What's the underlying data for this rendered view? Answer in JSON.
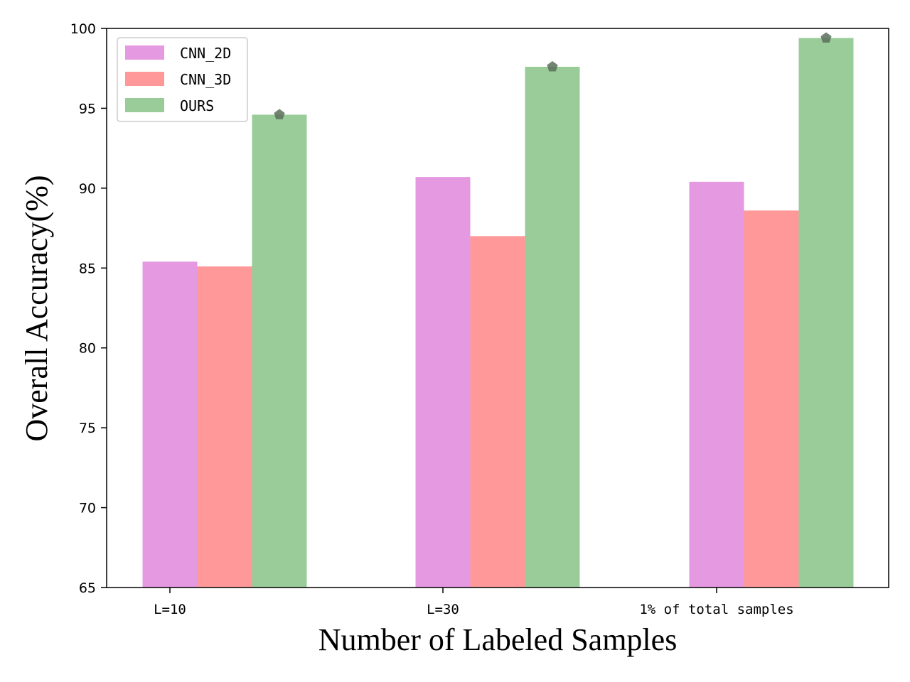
{
  "chart_data": {
    "type": "bar",
    "title": "",
    "xlabel": "Number of Labeled Samples",
    "ylabel": "Overall Accuracy(%)",
    "categories": [
      "L=10",
      "L=30",
      "1% of total samples"
    ],
    "ylim": [
      65,
      100
    ],
    "yticks": [
      "65",
      "70",
      "75",
      "80",
      "85",
      "90",
      "95",
      "100"
    ],
    "grid": false,
    "legend_position": "top-left",
    "series": [
      {
        "name": "CNN_2D",
        "color": "#e599e1",
        "values": [
          85.4,
          90.7,
          90.4
        ]
      },
      {
        "name": "CNN_3D",
        "color": "#ff9999",
        "values": [
          85.1,
          87.0,
          88.6
        ]
      },
      {
        "name": "OURS",
        "color": "#99cc99",
        "values": [
          94.6,
          97.6,
          99.4
        ]
      }
    ],
    "marker": {
      "series": "OURS",
      "shape": "pentagon",
      "color": "#5a6e5a"
    }
  }
}
